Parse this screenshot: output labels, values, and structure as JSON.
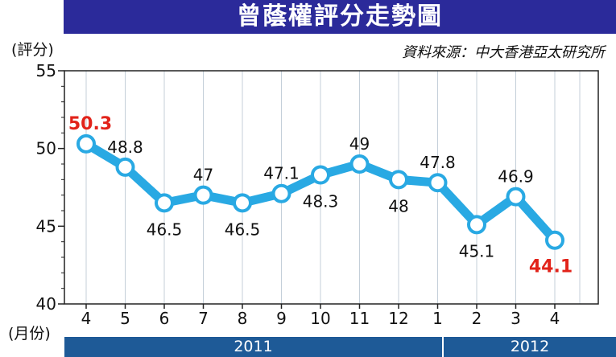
{
  "title": "曾蔭權評分走勢圖",
  "source": "資料來源：中大香港亞太研究所",
  "y_unit": "(評分)",
  "x_unit": "(月份)",
  "colors": {
    "title_bg": "#2b2a9a",
    "line": "#29a9e3",
    "highlight": "#e2231a",
    "year_bar": "#1e5a97"
  },
  "chart_data": {
    "type": "line",
    "title": "曾蔭權評分走勢圖",
    "ylabel": "(評分)",
    "xlabel": "(月份)",
    "ylim": [
      40,
      55
    ],
    "yticks": [
      40,
      45,
      50,
      55
    ],
    "categories": [
      "4",
      "5",
      "6",
      "7",
      "8",
      "9",
      "10",
      "11",
      "12",
      "1",
      "2",
      "3",
      "4"
    ],
    "values": [
      50.3,
      48.8,
      46.5,
      47,
      46.5,
      47.1,
      48.3,
      49,
      48,
      47.8,
      45.1,
      46.9,
      44.1
    ],
    "value_labels": [
      "50.3",
      "48.8",
      "46.5",
      "47",
      "46.5",
      "47.1",
      "48.3",
      "49",
      "48",
      "47.8",
      "45.1",
      "46.9",
      "44.1"
    ],
    "highlighted": [
      0,
      12
    ],
    "years": [
      {
        "label": "2011",
        "start": 0,
        "end": 8
      },
      {
        "label": "2012",
        "start": 9,
        "end": 12
      }
    ],
    "grid": true
  }
}
